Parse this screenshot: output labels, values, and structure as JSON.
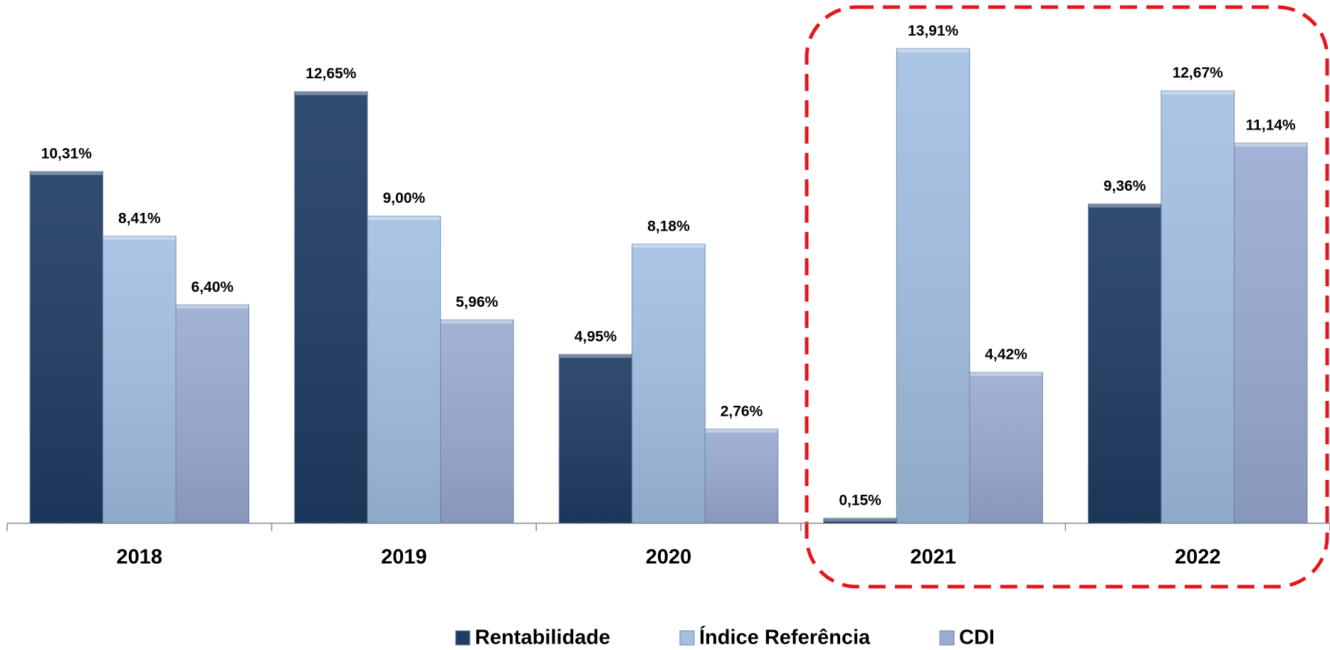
{
  "chart_data": {
    "type": "bar",
    "categories": [
      "2018",
      "2019",
      "2020",
      "2021",
      "2022"
    ],
    "series": [
      {
        "name": "Rentabilidade",
        "color": "#1f3c64",
        "values": [
          10.31,
          12.65,
          4.95,
          0.15,
          9.36
        ],
        "value_labels": [
          "10,31%",
          "12,65%",
          "4,95%",
          "0,15%",
          "9,36%"
        ]
      },
      {
        "name": "Índice Referência",
        "color": "#a3c0e4",
        "values": [
          8.41,
          9.0,
          8.18,
          13.91,
          12.67
        ],
        "value_labels": [
          "8,41%",
          "9,00%",
          "8,18%",
          "13,91%",
          "12,67%"
        ]
      },
      {
        "name": "CDI",
        "color": "#9aabd2",
        "values": [
          6.4,
          5.96,
          2.76,
          4.42,
          11.14
        ],
        "value_labels": [
          "6,40%",
          "5,96%",
          "2,76%",
          "4,42%",
          "11,14%"
        ]
      }
    ],
    "ylim": [
      0,
      15
    ],
    "legend": "bottom"
  }
}
